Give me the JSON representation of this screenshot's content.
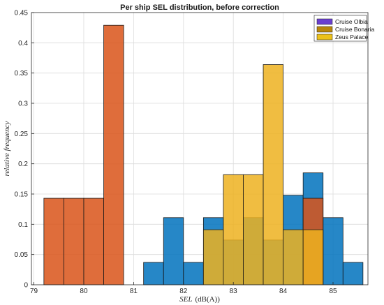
{
  "chart_data": {
    "type": "bar",
    "title": "Per ship SEL distribution, before correction",
    "xlabel": "SEL (dB(A))",
    "xlabel_main": "SEL",
    "xlabel_unit": "(dB(A))",
    "ylabel": "relative frequency",
    "xlim": [
      78.95,
      85.7
    ],
    "ylim": [
      0,
      0.45
    ],
    "xticks": [
      "79",
      "80",
      "81",
      "82",
      "83",
      "84",
      "85"
    ],
    "yticks": [
      "0",
      "0.05",
      "0.1",
      "0.15",
      "0.2",
      "0.25",
      "0.3",
      "0.35",
      "0.4",
      "0.45"
    ],
    "grid": true,
    "legend_position": "top-right",
    "bin_width": 0.4,
    "series": [
      {
        "name": "Cruise Olbia",
        "color": "#0072bd",
        "bins": [
          {
            "x0": 81.2,
            "value": 0.037
          },
          {
            "x0": 81.6,
            "value": 0.111
          },
          {
            "x0": 82.0,
            "value": 0.037
          },
          {
            "x0": 82.4,
            "value": 0.111
          },
          {
            "x0": 82.8,
            "value": 0.074
          },
          {
            "x0": 83.2,
            "value": 0.111
          },
          {
            "x0": 83.6,
            "value": 0.074
          },
          {
            "x0": 84.0,
            "value": 0.148
          },
          {
            "x0": 84.4,
            "value": 0.185
          },
          {
            "x0": 84.8,
            "value": 0.111
          },
          {
            "x0": 85.2,
            "value": 0.037
          }
        ]
      },
      {
        "name": "Cruise Bonaria",
        "color": "#d95319",
        "bins": [
          {
            "x0": 79.2,
            "value": 0.143
          },
          {
            "x0": 79.6,
            "value": 0.143
          },
          {
            "x0": 80.0,
            "value": 0.143
          },
          {
            "x0": 80.4,
            "value": 0.429
          },
          {
            "x0": 84.4,
            "value": 0.143
          }
        ]
      },
      {
        "name": "Zeus Palace",
        "color": "#edb120",
        "bins": [
          {
            "x0": 82.4,
            "value": 0.091
          },
          {
            "x0": 82.8,
            "value": 0.182
          },
          {
            "x0": 83.2,
            "value": 0.182
          },
          {
            "x0": 83.6,
            "value": 0.364
          },
          {
            "x0": 84.0,
            "value": 0.091
          },
          {
            "x0": 84.4,
            "value": 0.091
          }
        ]
      }
    ],
    "legend_swatch_colors": [
      "#6a3fd0",
      "#b8860b",
      "#ecc11a"
    ]
  }
}
